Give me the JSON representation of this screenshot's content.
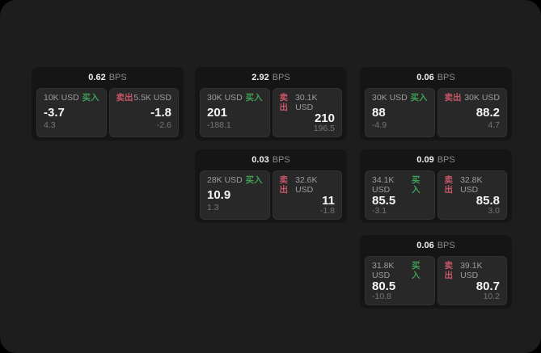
{
  "labels": {
    "bps_unit": "BPS",
    "buy": "买入",
    "sell": "卖出"
  },
  "colors": {
    "canvas": "#1d1d1d",
    "card": "#151515",
    "panel": "#282828",
    "buy_green": "#3f9e55",
    "sell_red": "#c75667",
    "value_white": "#f5f5f5",
    "label_gray": "#9c9c9c",
    "sub_gray": "#757575"
  },
  "cards": [
    {
      "bps": "0.62",
      "buy": {
        "amount": "10K USD",
        "value": "-3.7",
        "sub": "4.3"
      },
      "sell": {
        "amount": "5.5K USD",
        "value": "-1.8",
        "sub": "-2.6"
      }
    },
    {
      "bps": "2.92",
      "buy": {
        "amount": "30K USD",
        "value": "201",
        "sub": "-188.1"
      },
      "sell": {
        "amount": "30.1K USD",
        "value": "210",
        "sub": "196.5"
      }
    },
    {
      "bps": "0.06",
      "buy": {
        "amount": "30K USD",
        "value": "88",
        "sub": "-4.9"
      },
      "sell": {
        "amount": "30K USD",
        "value": "88.2",
        "sub": "4.7"
      }
    },
    {
      "bps": "0.03",
      "buy": {
        "amount": "28K USD",
        "value": "10.9",
        "sub": "1.3"
      },
      "sell": {
        "amount": "32.6K USD",
        "value": "11",
        "sub": "-1.8"
      }
    },
    {
      "bps": "0.09",
      "buy": {
        "amount": "34.1K USD",
        "value": "85.5",
        "sub": "-3.1"
      },
      "sell": {
        "amount": "32.8K USD",
        "value": "85.8",
        "sub": "3.0"
      }
    },
    {
      "bps": "0.06",
      "buy": {
        "amount": "31.8K USD",
        "value": "80.5",
        "sub": "-10.8"
      },
      "sell": {
        "amount": "39.1K USD",
        "value": "80.7",
        "sub": "10.2"
      }
    }
  ]
}
